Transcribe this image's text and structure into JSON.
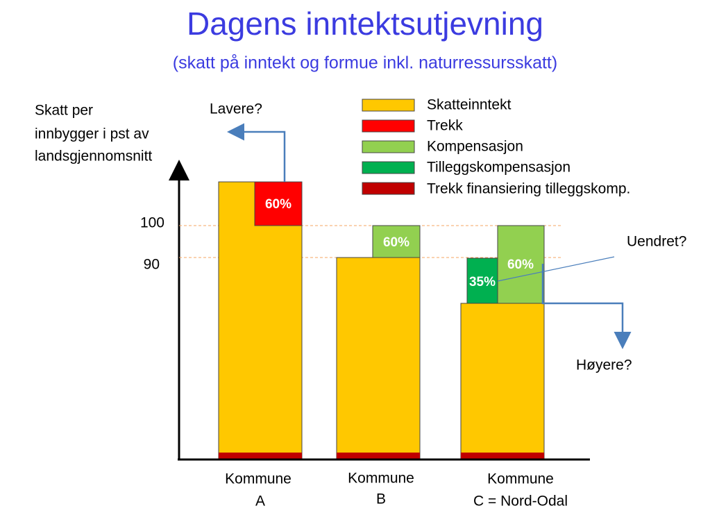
{
  "header": {
    "title": "Dagens inntektsutjevning",
    "subtitle": "(skatt på inntekt og formue inkl. naturressursskatt)"
  },
  "axis_label": {
    "lines": [
      "Skatt per",
      "innbygger i pst av",
      "landsgjennomsnitt"
    ]
  },
  "levels": [
    "100",
    "90"
  ],
  "legend": [
    "Skatteinntekt",
    "Trekk",
    "Kompensasjon",
    "Tilleggskompensasjon",
    "Trekk finansiering tilleggskomp."
  ],
  "bar_labels": {
    "a_trekk": "60%",
    "b_kompensasjon": "60%",
    "c_tillegg": "35%",
    "c_kompensasjon": "60%"
  },
  "annotations": {
    "lavere": "Lavere?",
    "uendret": "Uendret?",
    "hoyere": "Høyere?"
  },
  "categories": [
    [
      "Kommune",
      "A"
    ],
    [
      "Kommune",
      "B"
    ],
    [
      "Kommune",
      "C  = Nord-Odal"
    ]
  ]
}
